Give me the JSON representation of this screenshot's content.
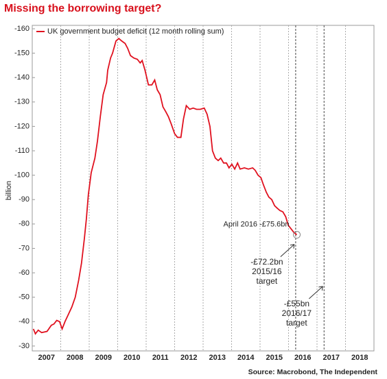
{
  "chart_data": {
    "type": "line",
    "title": "Missing the borrowing target?",
    "y_label": "billion",
    "source": "Source: Macrobond, The Independent",
    "legend": "upper left",
    "series": [
      {
        "name": "UK government budget deficit (12 month rolling sum)",
        "color": "#e0101e",
        "x": [
          2007.04,
          2007.11,
          2007.21,
          2007.33,
          2007.52,
          2007.67,
          2007.76,
          2007.86,
          2007.96,
          2008.05,
          2008.15,
          2008.27,
          2008.39,
          2008.51,
          2008.63,
          2008.73,
          2008.83,
          2008.9,
          2008.97,
          2009.07,
          2009.2,
          2009.29,
          2009.39,
          2009.49,
          2009.61,
          2009.65,
          2009.75,
          2009.82,
          2009.94,
          2010.04,
          2010.14,
          2010.26,
          2010.35,
          2010.45,
          2010.57,
          2010.69,
          2010.79,
          2010.86,
          2010.96,
          2011.08,
          2011.2,
          2011.3,
          2011.39,
          2011.49,
          2011.59,
          2011.69,
          2011.78,
          2011.88,
          2012.0,
          2012.1,
          2012.22,
          2012.31,
          2012.41,
          2012.53,
          2012.65,
          2012.77,
          2012.9,
          2013.04,
          2013.14,
          2013.24,
          2013.33,
          2013.43,
          2013.53,
          2013.62,
          2013.72,
          2013.82,
          2013.91,
          2014.01,
          2014.11,
          2014.21,
          2014.3,
          2014.45,
          2014.59,
          2014.74,
          2014.83,
          2014.93,
          2015.03,
          2015.12,
          2015.22,
          2015.31,
          2015.41,
          2015.51,
          2015.6,
          2015.7,
          2015.8,
          2015.9,
          2015.99,
          2016.09,
          2016.19,
          2016.29
        ],
        "values": [
          -37,
          -35,
          -36.5,
          -35.5,
          -36,
          -38.5,
          -39,
          -40.5,
          -40,
          -37,
          -40,
          -43,
          -46,
          -50,
          -57,
          -64,
          -74,
          -82,
          -92,
          -101,
          -107,
          -114,
          -124,
          -133,
          -138,
          -143,
          -148,
          -150,
          -155,
          -156,
          -155,
          -154,
          -152,
          -149,
          -148,
          -147.5,
          -146,
          -147,
          -143,
          -137,
          -137,
          -139,
          -135,
          -133,
          -128,
          -126,
          -124,
          -121,
          -117,
          -115.5,
          -115.5,
          -123,
          -128.5,
          -127,
          -127.5,
          -127,
          -127,
          -127.5,
          -125,
          -120,
          -110,
          -107,
          -106,
          -107,
          -105,
          -105,
          -103,
          -104.5,
          -102.5,
          -105,
          -102.5,
          -103,
          -102.5,
          -103,
          -102,
          -100,
          -99,
          -96,
          -93,
          -91,
          -90,
          -87.5,
          -86.5,
          -85.5,
          -85,
          -83,
          -79.5,
          -78,
          -76.5,
          -75.6
        ]
      }
    ],
    "callout": {
      "text": "April 2016 -£75.6bn",
      "x": 2016.29,
      "value": -75.6
    },
    "targets": [
      {
        "lines": [
          "-£72.2bn",
          "2015/16",
          "target"
        ],
        "x": 2016.25,
        "value": -72.2
      },
      {
        "lines": [
          "-£55bn",
          "2016/17",
          "target"
        ],
        "x": 2017.25,
        "value": -55
      }
    ],
    "xlim": [
      2007,
      2019
    ],
    "xticks": [
      2007,
      2008,
      2009,
      2010,
      2011,
      2012,
      2013,
      2014,
      2015,
      2016,
      2017,
      2018
    ],
    "ylim": [
      -28,
      -161.4
    ],
    "yticks": [
      -160,
      -150,
      -140,
      -130,
      -120,
      -110,
      -100,
      -90,
      -80,
      -70,
      -60,
      -50,
      -40,
      -30
    ],
    "grid": true
  }
}
